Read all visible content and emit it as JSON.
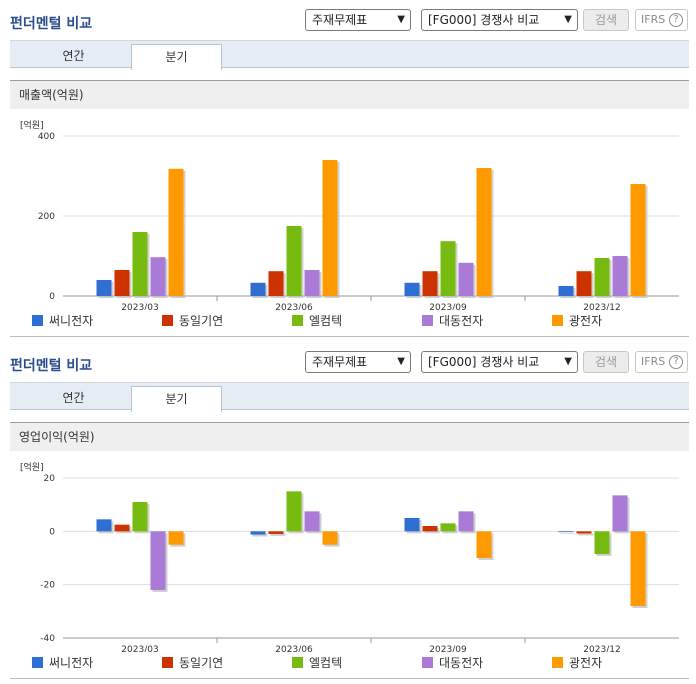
{
  "panels": [
    {
      "title": "펀더멘털 비교",
      "select1": "주재무제표",
      "select2": "[FG000] 경쟁사 비교",
      "search_label": "검색",
      "ifrs_label": "IFRS",
      "help_glyph": "?",
      "tabs": [
        "연간",
        "분기"
      ],
      "active_tab": "분기",
      "section_title": "매출액(억원)",
      "unit_label": "[억원]"
    },
    {
      "title": "펀더멘털 비교",
      "select1": "주재무제표",
      "select2": "[FG000] 경쟁사 비교",
      "search_label": "검색",
      "ifrs_label": "IFRS",
      "help_glyph": "?",
      "tabs": [
        "연간",
        "분기"
      ],
      "active_tab": "분기",
      "section_title": "영업이익(억원)",
      "unit_label": "[억원]"
    }
  ],
  "legend": [
    {
      "name": "써니전자",
      "color": "#2f6fd4"
    },
    {
      "name": "동일기연",
      "color": "#cc3300"
    },
    {
      "name": "엘컴텍",
      "color": "#77bb11"
    },
    {
      "name": "대동전자",
      "color": "#a97ad6"
    },
    {
      "name": "광전자",
      "color": "#ff9900"
    }
  ],
  "chart_data": [
    {
      "type": "bar",
      "title": "매출액(억원)",
      "ylabel": "[억원]",
      "categories": [
        "2023/03",
        "2023/06",
        "2023/09",
        "2023/12"
      ],
      "ylim": [
        0,
        400
      ],
      "yticks": [
        0,
        200,
        400
      ],
      "grid": true,
      "legend_position": "bottom",
      "series": [
        {
          "name": "써니전자",
          "values": [
            40,
            33,
            33,
            25
          ]
        },
        {
          "name": "동일기연",
          "values": [
            65,
            62,
            62,
            62
          ]
        },
        {
          "name": "엘컴텍",
          "values": [
            160,
            175,
            137,
            95
          ]
        },
        {
          "name": "대동전자",
          "values": [
            97,
            65,
            83,
            100
          ]
        },
        {
          "name": "광전자",
          "values": [
            318,
            340,
            320,
            280
          ]
        }
      ]
    },
    {
      "type": "bar",
      "title": "영업이익(억원)",
      "ylabel": "[억원]",
      "categories": [
        "2023/03",
        "2023/06",
        "2023/09",
        "2023/12"
      ],
      "ylim": [
        -40,
        20
      ],
      "yticks": [
        -40,
        -20,
        0,
        20
      ],
      "grid": true,
      "legend_position": "bottom",
      "series": [
        {
          "name": "써니전자",
          "values": [
            4.5,
            -1.2,
            5,
            0
          ]
        },
        {
          "name": "동일기연",
          "values": [
            2.5,
            -1,
            2,
            -0.8
          ]
        },
        {
          "name": "엘컴텍",
          "values": [
            11,
            15,
            3,
            -8.5
          ]
        },
        {
          "name": "대동전자",
          "values": [
            -22,
            7.5,
            7.5,
            13.5
          ]
        },
        {
          "name": "광전자",
          "values": [
            -5,
            -5,
            -10,
            -28
          ]
        }
      ]
    }
  ]
}
